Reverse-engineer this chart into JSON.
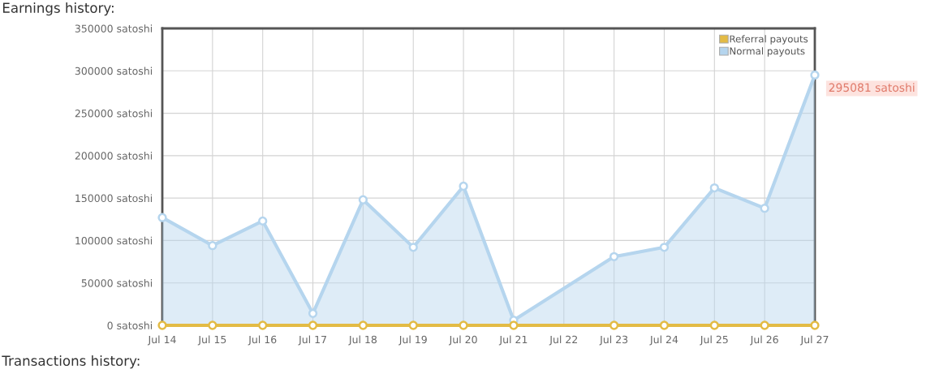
{
  "chart_data": {
    "type": "area",
    "title": "Earnings history:",
    "categories": [
      "Jul 14",
      "Jul 15",
      "Jul 16",
      "Jul 17",
      "Jul 18",
      "Jul 19",
      "Jul 20",
      "Jul 21",
      "Jul 22",
      "Jul 23",
      "Jul 24",
      "Jul 25",
      "Jul 26",
      "Jul 27"
    ],
    "series": [
      {
        "name": "Referral payouts",
        "type": "line",
        "color": "#e3bb45",
        "values": [
          0,
          0,
          0,
          0,
          0,
          0,
          0,
          0,
          null,
          0,
          0,
          0,
          0,
          0
        ]
      },
      {
        "name": "Normal payouts",
        "color": "#b5d5ee",
        "values": [
          127000,
          94000,
          123000,
          14000,
          148000,
          92000,
          164000,
          6000,
          null,
          81000,
          92000,
          162000,
          138000,
          295081
        ]
      }
    ],
    "ylim": [
      0,
      350000
    ],
    "yticks": [
      {
        "value": 0,
        "label": "0 satoshi"
      },
      {
        "value": 50000,
        "label": "50000 satoshi"
      },
      {
        "value": 100000,
        "label": "100000 satoshi"
      },
      {
        "value": 150000,
        "label": "150000 satoshi"
      },
      {
        "value": 200000,
        "label": "200000 satoshi"
      },
      {
        "value": 250000,
        "label": "250000 satoshi"
      },
      {
        "value": 300000,
        "label": "300000 satoshi"
      },
      {
        "value": 350000,
        "label": "350000 satoshi"
      }
    ],
    "annotations": [
      {
        "text": "295081 satoshi",
        "x": "Jul 27",
        "y": 295081
      },
      "Transactions history:"
    ],
    "grid": true,
    "legend": "top right",
    "marker": "circle",
    "line_style": "solid"
  }
}
